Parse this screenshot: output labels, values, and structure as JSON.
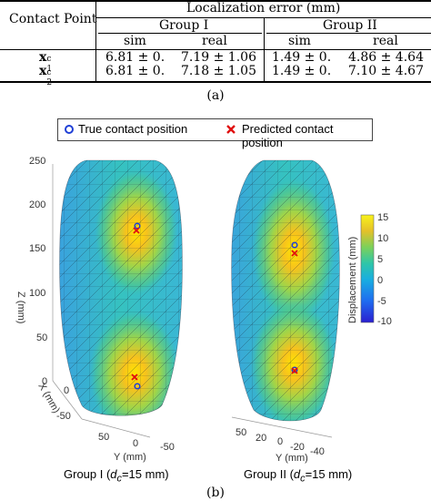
{
  "table": {
    "headers": {
      "contact_point": "Contact Point",
      "localization_error": "Localization error (mm)",
      "group1": "Group I",
      "group2": "Group II",
      "sim": "sim",
      "real": "real"
    },
    "rows": [
      {
        "label_base": "x",
        "label_sup": "c",
        "label_sub": "1",
        "g1_sim": "6.81 ± 0.",
        "g1_real": "7.19 ± 1.06",
        "g2_sim": "1.49 ± 0.",
        "g2_real": "4.86 ± 4.64"
      },
      {
        "label_base": "x",
        "label_sup": "c",
        "label_sub": "2",
        "g1_sim": "6.81 ± 0.",
        "g1_real": "7.18 ± 1.05",
        "g2_sim": "1.49 ± 0.",
        "g2_real": "7.10 ± 4.67"
      }
    ],
    "caption": "(a)"
  },
  "figure": {
    "legend": {
      "true_label": "True contact position",
      "pred_label": "Predicted contact position",
      "true_color": "#1f3fd6",
      "pred_color": "#e01010"
    },
    "left_panel": {
      "z_ticks": [
        "250",
        "200",
        "150",
        "100",
        "50",
        "0"
      ],
      "zlabel": "Z (mm)",
      "x_ticks": [
        "0",
        "-50"
      ],
      "xlabel": "X (mm)",
      "y_ticks": [
        "50",
        "0",
        "-50"
      ],
      "ylabel": "Y (mm)",
      "caption_pre": "Group I (",
      "caption_var": "d",
      "caption_sub": "c",
      "caption_post": "=15 mm)"
    },
    "right_panel": {
      "y_ticks": [
        "50",
        "20",
        "0",
        "-20",
        "-40"
      ],
      "ylabel": "Y (mm)",
      "caption_pre": "Group II (",
      "caption_var": "d",
      "caption_sub": "c",
      "caption_post": "=15 mm)"
    },
    "colorbar": {
      "label": "Displacement (mm)",
      "ticks": [
        "15",
        "10",
        "5",
        "0",
        "-5",
        "-10"
      ]
    },
    "caption": "(b)"
  }
}
